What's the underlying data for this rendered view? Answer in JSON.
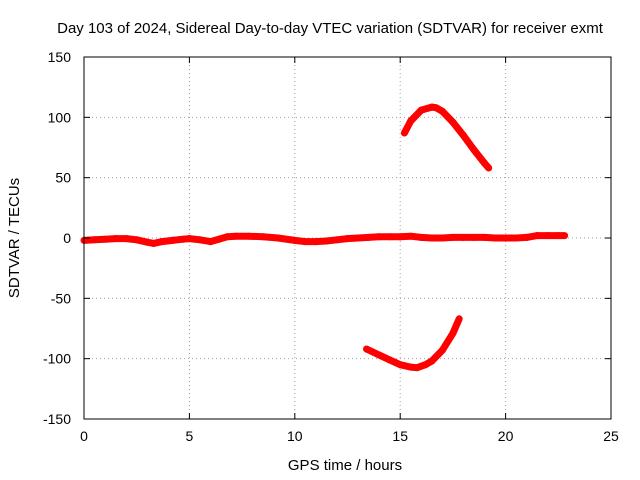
{
  "chart_data": {
    "type": "line",
    "title": "Day 103 of 2024, Sidereal Day-to-day VTEC variation (SDTVAR) for receiver exmt",
    "xlabel": "GPS time / hours",
    "ylabel": "SDTVAR / TECUs",
    "xlim": [
      0,
      25
    ],
    "ylim": [
      -150,
      150
    ],
    "x_ticks": [
      0,
      5,
      10,
      15,
      20,
      25
    ],
    "y_ticks": [
      -150,
      -100,
      -50,
      0,
      50,
      100,
      150
    ],
    "x_tick_labels": [
      "0",
      "5",
      "10",
      "15",
      "20",
      "25"
    ],
    "y_tick_labels": [
      "-150",
      "-100",
      "-50",
      "0",
      "50",
      "100",
      "150"
    ],
    "grid": true,
    "color": "#ff0000",
    "series": [
      {
        "name": "main",
        "x": [
          0.0,
          0.5,
          1.0,
          1.5,
          2.0,
          2.5,
          3.0,
          3.3,
          3.7,
          4.2,
          4.7,
          5.0,
          5.5,
          6.0,
          6.4,
          6.8,
          7.2,
          7.8,
          8.5,
          9.2,
          10.0,
          10.5,
          11.0,
          11.5,
          12.0,
          12.5,
          13.0,
          13.5,
          14.0,
          14.5,
          15.0,
          15.5,
          16.0,
          16.5,
          17.0,
          17.5,
          18.0,
          18.5,
          19.0,
          19.5,
          20.0,
          20.5,
          21.0,
          21.5,
          22.0,
          22.5,
          22.8
        ],
        "y": [
          -2,
          -1.5,
          -1,
          -0.5,
          -0.5,
          -1.5,
          -3.5,
          -4.5,
          -3,
          -2,
          -1,
          -0.5,
          -1.5,
          -3,
          -1,
          1,
          1.5,
          1.5,
          1,
          0,
          -2,
          -3,
          -3,
          -2.5,
          -1.5,
          -0.5,
          0,
          0.5,
          1,
          1,
          1,
          1.5,
          0.5,
          0,
          0,
          0.5,
          0.5,
          0.5,
          0.5,
          0,
          0,
          0,
          0.5,
          2,
          2,
          2,
          2
        ]
      },
      {
        "name": "upper_arc",
        "x": [
          15.2,
          15.5,
          16.0,
          16.5,
          16.7,
          17.0,
          17.5,
          18.0,
          18.5,
          19.0,
          19.2
        ],
        "y": [
          87,
          97,
          106,
          108.5,
          108,
          105,
          96,
          85,
          73,
          62,
          58
        ]
      },
      {
        "name": "lower_arc",
        "x": [
          13.4,
          14.0,
          14.5,
          15.0,
          15.5,
          15.8,
          16.2,
          16.5,
          17.0,
          17.5,
          17.8
        ],
        "y": [
          -92,
          -97,
          -101,
          -105,
          -107,
          -107.5,
          -105,
          -102,
          -93,
          -79,
          -67
        ]
      }
    ]
  }
}
